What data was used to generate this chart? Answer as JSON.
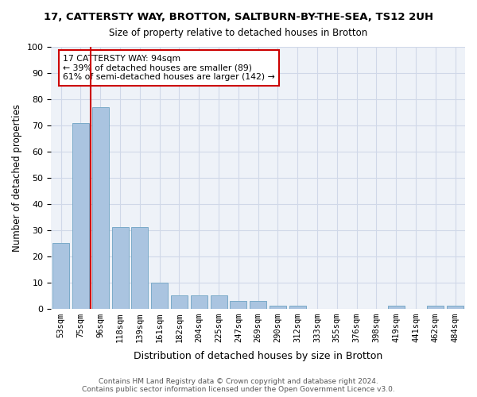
{
  "title": "17, CATTERSTY WAY, BROTTON, SALTBURN-BY-THE-SEA, TS12 2UH",
  "subtitle": "Size of property relative to detached houses in Brotton",
  "xlabel": "Distribution of detached houses by size in Brotton",
  "ylabel": "Number of detached properties",
  "categories": [
    "53sqm",
    "75sqm",
    "96sqm",
    "118sqm",
    "139sqm",
    "161sqm",
    "182sqm",
    "204sqm",
    "225sqm",
    "247sqm",
    "269sqm",
    "290sqm",
    "312sqm",
    "333sqm",
    "355sqm",
    "376sqm",
    "398sqm",
    "419sqm",
    "441sqm",
    "462sqm",
    "484sqm"
  ],
  "values": [
    25,
    71,
    77,
    31,
    31,
    10,
    5,
    5,
    5,
    3,
    3,
    1,
    1,
    0,
    0,
    0,
    0,
    1,
    0,
    1,
    1
  ],
  "bar_color": "#aac4e0",
  "bar_edge_color": "#7aaac8",
  "vline_x": 1.5,
  "vline_color": "#cc0000",
  "annotation_text": "17 CATTERSTY WAY: 94sqm\n← 39% of detached houses are smaller (89)\n61% of semi-detached houses are larger (142) →",
  "annotation_box_color": "#ffffff",
  "annotation_box_edge": "#cc0000",
  "ylim": [
    0,
    100
  ],
  "yticks": [
    0,
    10,
    20,
    30,
    40,
    50,
    60,
    70,
    80,
    90,
    100
  ],
  "grid_color": "#d0d8e8",
  "bg_color": "#eef2f8",
  "footer": "Contains HM Land Registry data © Crown copyright and database right 2024.\nContains public sector information licensed under the Open Government Licence v3.0."
}
